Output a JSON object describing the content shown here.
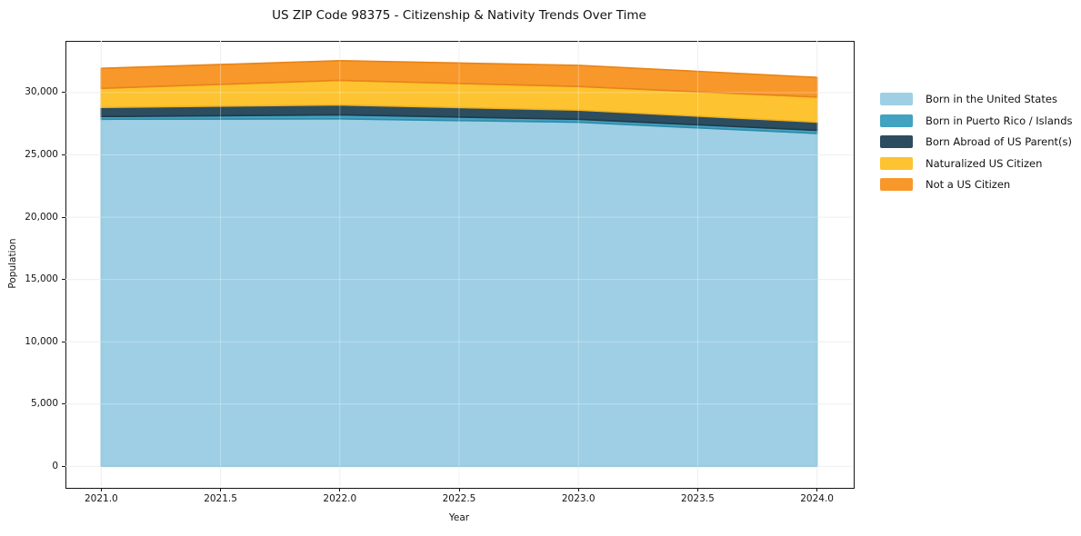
{
  "chart_data": {
    "type": "area",
    "stacked": true,
    "title": "US ZIP Code 98375 - Citizenship & Nativity Trends Over Time",
    "xlabel": "Year",
    "ylabel": "Population",
    "x": [
      2021,
      2022,
      2023,
      2024
    ],
    "series": [
      {
        "name": "Born in the United States",
        "color": "#9ECFE5",
        "edge_color": "#7EB8D3",
        "values": [
          27860,
          27890,
          27620,
          26720
        ]
      },
      {
        "name": "Born in Puerto Rico / Islands",
        "color": "#41A2C2",
        "edge_color": "#2E8BA8",
        "values": [
          220,
          320,
          240,
          250
        ]
      },
      {
        "name": "Born Abroad of US Parent(s)",
        "color": "#2C4D60",
        "edge_color": "#1E3A49",
        "values": [
          730,
          800,
          730,
          660
        ]
      },
      {
        "name": "Naturalized US Citizen",
        "color": "#FDC330",
        "edge_color": "#F0B021",
        "values": [
          1530,
          1970,
          1900,
          2010
        ]
      },
      {
        "name": "Not a US Citizen",
        "color": "#F8982B",
        "edge_color": "#E88316",
        "values": [
          1610,
          1580,
          1700,
          1580
        ]
      }
    ],
    "totals": [
      31950,
      32560,
      32190,
      31220
    ],
    "xlim": [
      2020.85,
      2024.15
    ],
    "ylim": [
      -1650,
      34150
    ],
    "x_ticks": [
      2021.0,
      2021.5,
      2022.0,
      2022.5,
      2023.0,
      2023.5,
      2024.0
    ],
    "x_tick_labels": [
      "2021.0",
      "2021.5",
      "2022.0",
      "2022.5",
      "2023.0",
      "2023.5",
      "2024.0"
    ],
    "y_ticks": [
      0,
      5000,
      10000,
      15000,
      20000,
      25000,
      30000
    ],
    "y_tick_labels": [
      "0",
      "5,000",
      "10,000",
      "15,000",
      "20,000",
      "25,000",
      "30,000"
    ],
    "grid": true,
    "legend_position": "right-outside",
    "grid_color": "#e9e9e9",
    "frame_color": "#151515",
    "background_color": "#ffffff"
  }
}
